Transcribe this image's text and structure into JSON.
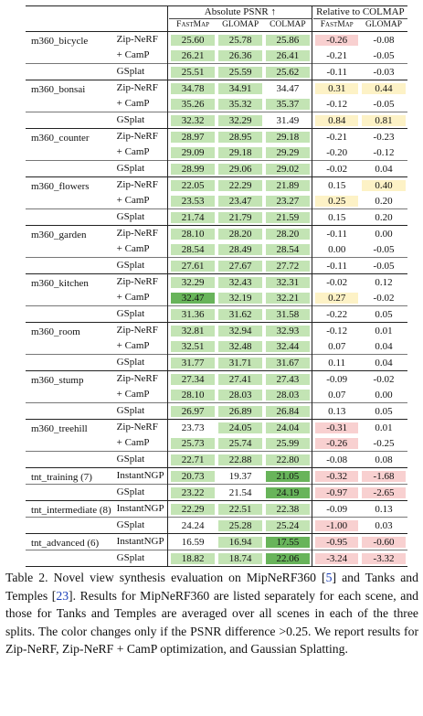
{
  "header": {
    "group_abs": "Absolute PSNR ↑",
    "group_rel": "Relative to COLMAP",
    "cols": [
      "FastMap",
      "GLOMAP",
      "COLMAP",
      "FastMap",
      "GLOMAP"
    ]
  },
  "groups": [
    {
      "scene": "m360_bicycle",
      "rows": [
        {
          "method": "Zip-NeRF",
          "vals": [
            "25.60",
            "25.78",
            "25.86",
            "-0.26",
            "-0.08"
          ],
          "hl": [
            "g",
            "g",
            "g",
            "p",
            ""
          ]
        },
        {
          "method": "+ CamP",
          "vals": [
            "26.21",
            "26.36",
            "26.41",
            "-0.21",
            "-0.05"
          ],
          "hl": [
            "g",
            "g",
            "g",
            "",
            ""
          ]
        },
        {
          "method": "GSplat",
          "vals": [
            "25.51",
            "25.59",
            "25.62",
            "-0.11",
            "-0.03"
          ],
          "hl": [
            "g",
            "g",
            "g",
            "",
            ""
          ]
        }
      ]
    },
    {
      "scene": "m360_bonsai",
      "rows": [
        {
          "method": "Zip-NeRF",
          "vals": [
            "34.78",
            "34.91",
            "34.47",
            "0.31",
            "0.44"
          ],
          "hl": [
            "g",
            "g",
            "",
            "y",
            "y"
          ]
        },
        {
          "method": "+ CamP",
          "vals": [
            "35.26",
            "35.32",
            "35.37",
            "-0.12",
            "-0.05"
          ],
          "hl": [
            "g",
            "g",
            "g",
            "",
            ""
          ]
        },
        {
          "method": "GSplat",
          "vals": [
            "32.32",
            "32.29",
            "31.49",
            "0.84",
            "0.81"
          ],
          "hl": [
            "g",
            "g",
            "",
            "y",
            "y"
          ]
        }
      ]
    },
    {
      "scene": "m360_counter",
      "rows": [
        {
          "method": "Zip-NeRF",
          "vals": [
            "28.97",
            "28.95",
            "29.18",
            "-0.21",
            "-0.23"
          ],
          "hl": [
            "g",
            "g",
            "g",
            "",
            ""
          ]
        },
        {
          "method": "+ CamP",
          "vals": [
            "29.09",
            "29.18",
            "29.29",
            "-0.20",
            "-0.12"
          ],
          "hl": [
            "g",
            "g",
            "g",
            "",
            ""
          ]
        },
        {
          "method": "GSplat",
          "vals": [
            "28.99",
            "29.06",
            "29.02",
            "-0.02",
            "0.04"
          ],
          "hl": [
            "g",
            "g",
            "g",
            "",
            ""
          ]
        }
      ]
    },
    {
      "scene": "m360_flowers",
      "rows": [
        {
          "method": "Zip-NeRF",
          "vals": [
            "22.05",
            "22.29",
            "21.89",
            "0.15",
            "0.40"
          ],
          "hl": [
            "g",
            "g",
            "g",
            "",
            "y"
          ]
        },
        {
          "method": "+ CamP",
          "vals": [
            "23.53",
            "23.47",
            "23.27",
            "0.25",
            "0.20"
          ],
          "hl": [
            "g",
            "g",
            "g",
            "y",
            ""
          ]
        },
        {
          "method": "GSplat",
          "vals": [
            "21.74",
            "21.79",
            "21.59",
            "0.15",
            "0.20"
          ],
          "hl": [
            "g",
            "g",
            "g",
            "",
            ""
          ]
        }
      ]
    },
    {
      "scene": "m360_garden",
      "rows": [
        {
          "method": "Zip-NeRF",
          "vals": [
            "28.10",
            "28.20",
            "28.20",
            "-0.11",
            "0.00"
          ],
          "hl": [
            "g",
            "g",
            "g",
            "",
            ""
          ]
        },
        {
          "method": "+ CamP",
          "vals": [
            "28.54",
            "28.49",
            "28.54",
            "0.00",
            "-0.05"
          ],
          "hl": [
            "g",
            "g",
            "g",
            "",
            ""
          ]
        },
        {
          "method": "GSplat",
          "vals": [
            "27.61",
            "27.67",
            "27.72",
            "-0.11",
            "-0.05"
          ],
          "hl": [
            "g",
            "g",
            "g",
            "",
            ""
          ]
        }
      ]
    },
    {
      "scene": "m360_kitchen",
      "rows": [
        {
          "method": "Zip-NeRF",
          "vals": [
            "32.29",
            "32.43",
            "32.31",
            "-0.02",
            "0.12"
          ],
          "hl": [
            "g",
            "g",
            "g",
            "",
            ""
          ]
        },
        {
          "method": "+ CamP",
          "vals": [
            "32.47",
            "32.19",
            "32.21",
            "0.27",
            "-0.02"
          ],
          "hl": [
            "G",
            "g",
            "g",
            "y",
            ""
          ]
        },
        {
          "method": "GSplat",
          "vals": [
            "31.36",
            "31.62",
            "31.58",
            "-0.22",
            "0.05"
          ],
          "hl": [
            "g",
            "g",
            "g",
            "",
            ""
          ]
        }
      ]
    },
    {
      "scene": "m360_room",
      "rows": [
        {
          "method": "Zip-NeRF",
          "vals": [
            "32.81",
            "32.94",
            "32.93",
            "-0.12",
            "0.01"
          ],
          "hl": [
            "g",
            "g",
            "g",
            "",
            ""
          ]
        },
        {
          "method": "+ CamP",
          "vals": [
            "32.51",
            "32.48",
            "32.44",
            "0.07",
            "0.04"
          ],
          "hl": [
            "g",
            "g",
            "g",
            "",
            ""
          ]
        },
        {
          "method": "GSplat",
          "vals": [
            "31.77",
            "31.71",
            "31.67",
            "0.11",
            "0.04"
          ],
          "hl": [
            "g",
            "g",
            "g",
            "",
            ""
          ]
        }
      ]
    },
    {
      "scene": "m360_stump",
      "rows": [
        {
          "method": "Zip-NeRF",
          "vals": [
            "27.34",
            "27.41",
            "27.43",
            "-0.09",
            "-0.02"
          ],
          "hl": [
            "g",
            "g",
            "g",
            "",
            ""
          ]
        },
        {
          "method": "+ CamP",
          "vals": [
            "28.10",
            "28.03",
            "28.03",
            "0.07",
            "0.00"
          ],
          "hl": [
            "g",
            "g",
            "g",
            "",
            ""
          ]
        },
        {
          "method": "GSplat",
          "vals": [
            "26.97",
            "26.89",
            "26.84",
            "0.13",
            "0.05"
          ],
          "hl": [
            "g",
            "g",
            "g",
            "",
            ""
          ]
        }
      ]
    },
    {
      "scene": "m360_treehill",
      "rows": [
        {
          "method": "Zip-NeRF",
          "vals": [
            "23.73",
            "24.05",
            "24.04",
            "-0.31",
            "0.01"
          ],
          "hl": [
            "",
            "g",
            "g",
            "p",
            ""
          ]
        },
        {
          "method": "+ CamP",
          "vals": [
            "25.73",
            "25.74",
            "25.99",
            "-0.26",
            "-0.25"
          ],
          "hl": [
            "g",
            "g",
            "g",
            "p",
            ""
          ]
        },
        {
          "method": "GSplat",
          "vals": [
            "22.71",
            "22.88",
            "22.80",
            "-0.08",
            "0.08"
          ],
          "hl": [
            "g",
            "g",
            "g",
            "",
            ""
          ]
        }
      ]
    },
    {
      "scene": "tnt_training (7)",
      "rows": [
        {
          "method": "InstantNGP",
          "vals": [
            "20.73",
            "19.37",
            "21.05",
            "-0.32",
            "-1.68"
          ],
          "hl": [
            "g",
            "",
            "G",
            "p",
            "p"
          ]
        },
        {
          "method": "GSplat",
          "vals": [
            "23.22",
            "21.54",
            "24.19",
            "-0.97",
            "-2.65"
          ],
          "hl": [
            "g",
            "",
            "G",
            "p",
            "p"
          ]
        }
      ]
    },
    {
      "scene": "tnt_intermediate (8)",
      "rows": [
        {
          "method": "InstantNGP",
          "vals": [
            "22.29",
            "22.51",
            "22.38",
            "-0.09",
            "0.13"
          ],
          "hl": [
            "g",
            "g",
            "g",
            "",
            ""
          ]
        },
        {
          "method": "GSplat",
          "vals": [
            "24.24",
            "25.28",
            "25.24",
            "-1.00",
            "0.03"
          ],
          "hl": [
            "",
            "g",
            "g",
            "p",
            ""
          ]
        }
      ]
    },
    {
      "scene": "tnt_advanced (6)",
      "rows": [
        {
          "method": "InstantNGP",
          "vals": [
            "16.59",
            "16.94",
            "17.55",
            "-0.95",
            "-0.60"
          ],
          "hl": [
            "",
            "g",
            "G",
            "p",
            "p"
          ]
        },
        {
          "method": "GSplat",
          "vals": [
            "18.82",
            "18.74",
            "22.06",
            "-3.24",
            "-3.32"
          ],
          "hl": [
            "g",
            "g",
            "G",
            "p",
            "p"
          ]
        }
      ]
    }
  ],
  "caption": {
    "p1": "Table 2. Novel view synthesis evaluation on MipNeRF360 [",
    "ref1": "5",
    "p2": "] and Tanks and Temples [",
    "ref2": "23",
    "p3": "]. Results for MipNeRF360 are listed separately for each scene, and those for Tanks and Temples are averaged over all scenes in each of the three splits. The color changes only if the PSNR difference >0.25. We report results for Zip-NeRF, Zip-NeRF + CamP optimization, and Gaussian Splatting."
  },
  "colors": {
    "green_light": "#c3e4b4",
    "green_mid": "#a9d89a",
    "green_dark": "#68b45a",
    "pink": "#f8d0d0",
    "yellow": "#fdf2c6"
  }
}
